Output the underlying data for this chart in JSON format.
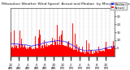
{
  "title": "Milwaukee Weather Wind Speed  Actual and Median  by Minute  (24 Hours) (Old)",
  "background_color": "#ffffff",
  "plot_bg_color": "#ffffff",
  "bar_color": "#ff0000",
  "line_color": "#0000ff",
  "grid_color": "#888888",
  "ylim": [
    0,
    30
  ],
  "ytick_vals": [
    5,
    10,
    15,
    20,
    25,
    30
  ],
  "n_points": 1440,
  "seed": 42,
  "legend_actual": "Actual",
  "legend_median": "Median",
  "title_fontsize": 3.2,
  "tick_fontsize": 2.8,
  "legend_fontsize": 3.0,
  "n_vgrid": 24
}
